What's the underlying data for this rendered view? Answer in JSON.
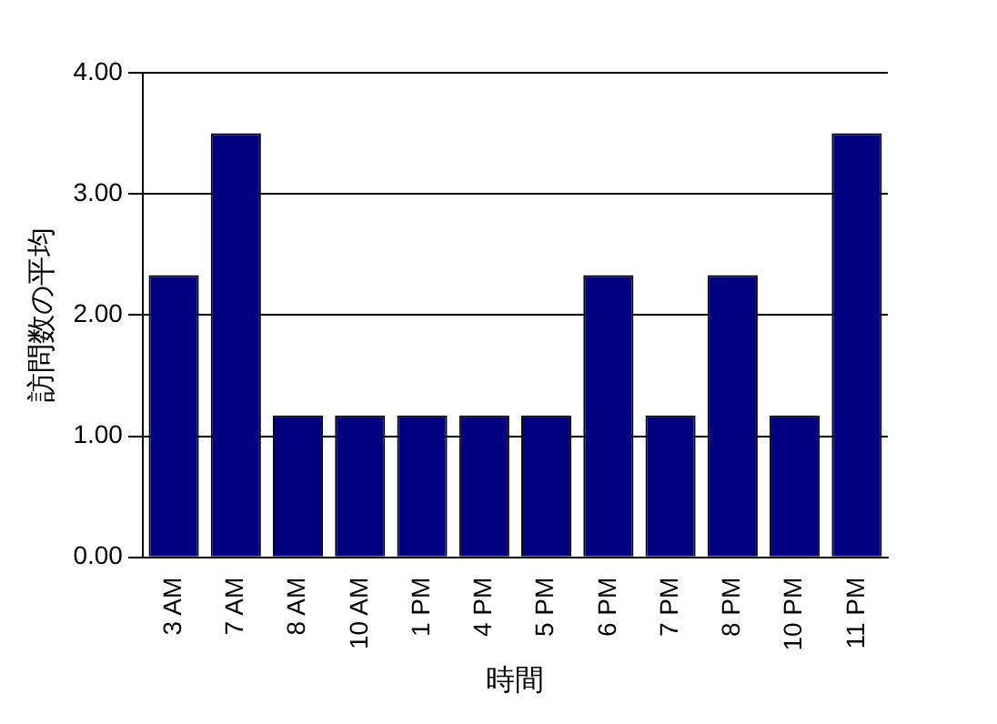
{
  "chart_data": {
    "type": "bar",
    "xlabel": "時間",
    "ylabel": "訪問数の平均",
    "categories": [
      "3 AM",
      "7 AM",
      "8 AM",
      "10 AM",
      "1 PM",
      "4 PM",
      "5 PM",
      "6 PM",
      "7 PM",
      "8 PM",
      "10 PM",
      "11 PM"
    ],
    "values": [
      2.33,
      3.5,
      1.17,
      1.17,
      1.17,
      1.17,
      1.17,
      2.33,
      1.17,
      2.33,
      1.17,
      3.5
    ],
    "color": "#000080",
    "ylim": [
      0,
      4
    ],
    "yticks": [
      {
        "value": 0,
        "label": "0.00"
      },
      {
        "value": 1,
        "label": "1.00"
      },
      {
        "value": 2,
        "label": "2.00"
      },
      {
        "value": 3,
        "label": "3.00"
      },
      {
        "value": 4,
        "label": "4.00"
      }
    ],
    "grid": "y",
    "legend": false
  }
}
